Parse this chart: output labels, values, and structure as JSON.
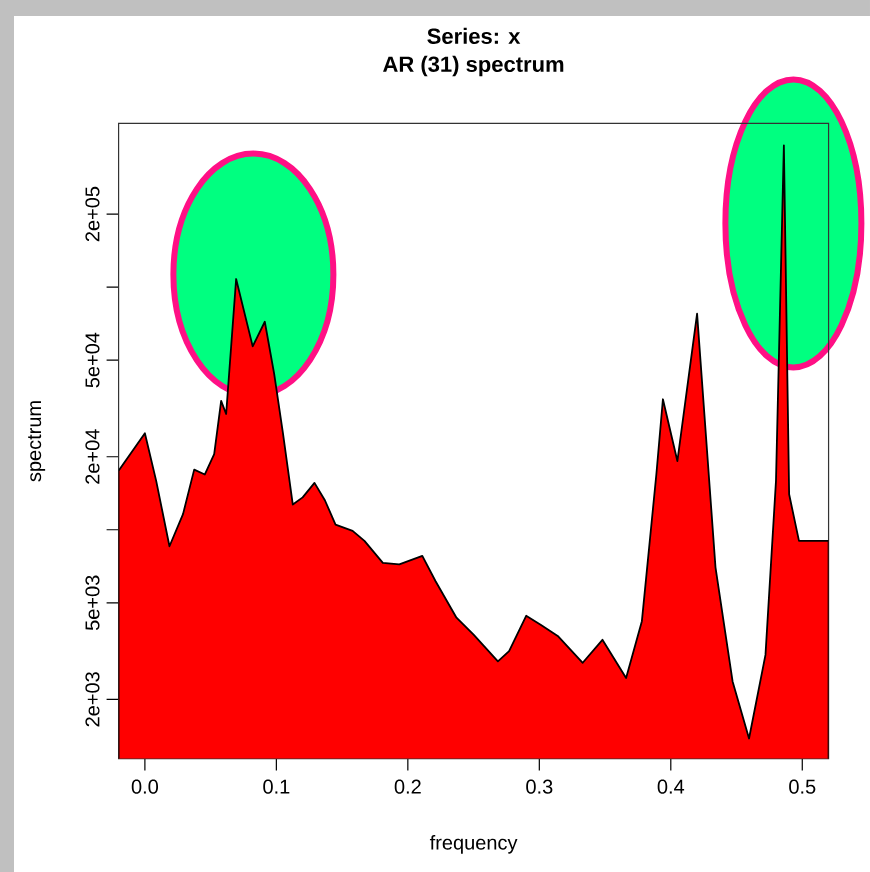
{
  "chart_data": {
    "type": "area",
    "title": "Series: x",
    "subtitle": "AR (31) spectrum",
    "xlabel": "frequency",
    "ylabel": "spectrum",
    "log": "y",
    "color": "#ff0000",
    "x": [
      -0.02,
      0,
      0.0086,
      0.0187,
      0.029,
      0.0375,
      0.0456,
      0.0527,
      0.058,
      0.0618,
      0.0694,
      0.082,
      0.0912,
      0.0983,
      0.105,
      0.1125,
      0.12,
      0.129,
      0.137,
      0.145,
      0.158,
      0.167,
      0.181,
      0.1935,
      0.211,
      0.221,
      0.237,
      0.25,
      0.2685,
      0.277,
      0.29,
      0.301,
      0.314,
      0.333,
      0.348,
      0.366,
      0.378,
      0.389,
      0.394,
      0.405,
      0.42,
      0.434,
      0.447,
      0.4595,
      0.472,
      0.48,
      0.486,
      0.49,
      0.4975,
      0.52
    ],
    "values": [
      17500,
      25000,
      15900,
      8550,
      11600,
      17700,
      16900,
      20500,
      34000,
      30000,
      108000,
      57000,
      72000,
      44000,
      25000,
      12700,
      13600,
      15600,
      13200,
      10500,
      9900,
      9000,
      7300,
      7200,
      7800,
      6150,
      4340,
      3700,
      2870,
      3160,
      4420,
      4060,
      3650,
      2830,
      3520,
      2450,
      4200,
      16900,
      34500,
      19200,
      77700,
      7000,
      2370,
      1380,
      3050,
      15900,
      384000,
      14000,
      9000,
      9000
    ],
    "xlim": [
      -0.02,
      0.52
    ],
    "ylim": [
      1140,
      473000
    ],
    "xticks": [
      {
        "value": 0,
        "label": "0.0"
      },
      {
        "value": 0.1,
        "label": "0.1"
      },
      {
        "value": 0.2,
        "label": "0.2"
      },
      {
        "value": 0.3,
        "label": "0.3"
      },
      {
        "value": 0.4,
        "label": "0.4"
      },
      {
        "value": 0.5,
        "label": "0.5"
      }
    ],
    "yticks": [
      {
        "value": 2000,
        "label": "2e+03"
      },
      {
        "value": 5000,
        "label": "5e+03"
      },
      {
        "value": 10000,
        "label": null
      },
      {
        "value": 20000,
        "label": "2e+04"
      },
      {
        "value": 50000,
        "label": "5e+04"
      },
      {
        "value": 100000,
        "label": null
      },
      {
        "value": 200000,
        "label": "2e+05"
      }
    ]
  }
}
